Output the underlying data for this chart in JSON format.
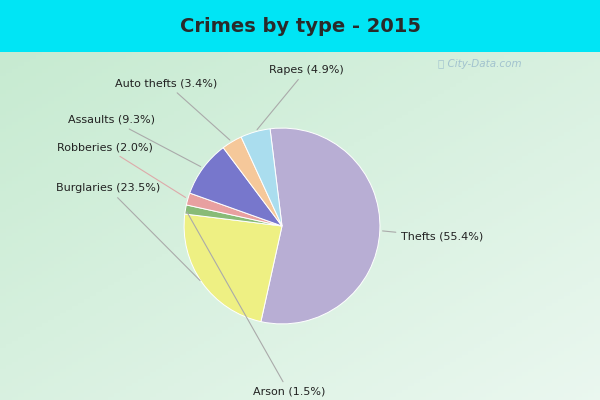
{
  "title": "Crimes by type - 2015",
  "slices": [
    {
      "label": "Thefts",
      "pct": 55.4,
      "color": "#b8aed4"
    },
    {
      "label": "Burglaries",
      "pct": 23.5,
      "color": "#eef083"
    },
    {
      "label": "Arson",
      "pct": 1.5,
      "color": "#88bb77"
    },
    {
      "label": "Robberies",
      "pct": 2.0,
      "color": "#e8a0a0"
    },
    {
      "label": "Assaults",
      "pct": 9.3,
      "color": "#7777cc"
    },
    {
      "label": "Auto thefts",
      "pct": 3.4,
      "color": "#f5c89a"
    },
    {
      "label": "Rapes",
      "pct": 4.9,
      "color": "#aaddee"
    }
  ],
  "title_fontsize": 14,
  "label_fontsize": 8,
  "background_top_color": "#00e5f5",
  "background_main_color_tl": "#c8e8d0",
  "background_main_color_br": "#e8f5f0",
  "watermark": "ⓘ City-Data.com",
  "startangle": 90,
  "title_color": "#2a2a2a"
}
